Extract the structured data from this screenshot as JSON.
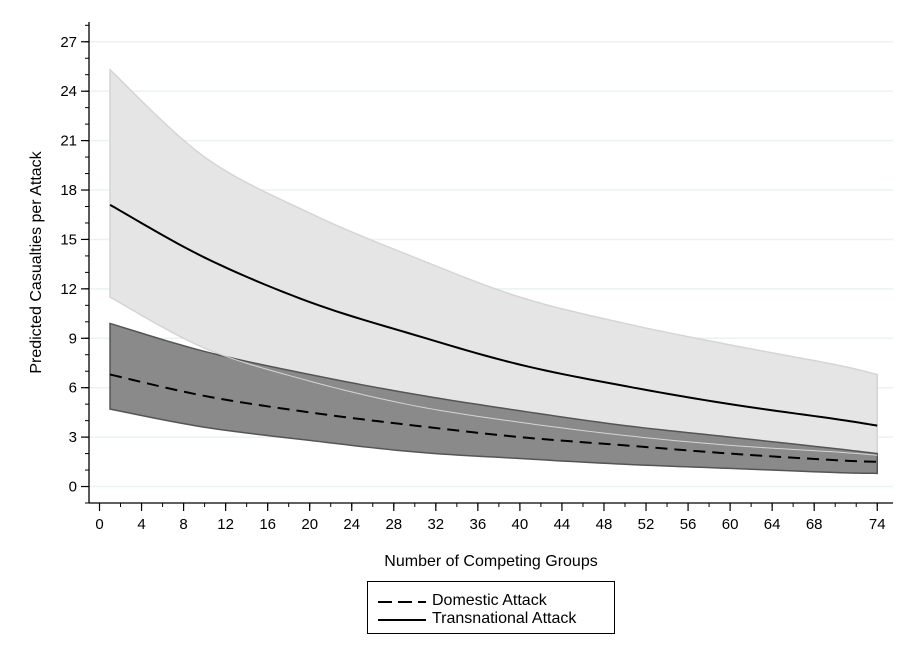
{
  "chart_data": {
    "type": "line",
    "xlabel": "Number of Competing Groups",
    "ylabel": "Predicted Casualties per Attack",
    "xlim": [
      -1,
      75.5
    ],
    "ylim": [
      -1,
      28.2
    ],
    "x_ticks": [
      0,
      4,
      8,
      12,
      16,
      20,
      24,
      28,
      32,
      36,
      40,
      44,
      48,
      52,
      56,
      60,
      64,
      68,
      74
    ],
    "y_ticks": [
      0,
      3,
      6,
      9,
      12,
      15,
      18,
      21,
      24,
      27
    ],
    "y_minor_step": 1,
    "grid": "horizontal",
    "legend_position": "bottom",
    "series": [
      {
        "name": "Transnational Attack",
        "line_style": "solid",
        "x": [
          1,
          10,
          20,
          30,
          40,
          50,
          60,
          70,
          74
        ],
        "values": [
          17.1,
          13.9,
          11.2,
          9.2,
          7.4,
          6.1,
          5.0,
          4.1,
          3.7
        ],
        "ci_lower": [
          11.5,
          8.4,
          6.4,
          4.9,
          3.9,
          3.1,
          2.5,
          2.1,
          1.9
        ],
        "ci_upper": [
          25.3,
          20.0,
          16.6,
          13.9,
          11.5,
          9.9,
          8.6,
          7.4,
          6.8
        ],
        "band_color": "#e5e5e5",
        "band_edge_color": "#d5d5d5"
      },
      {
        "name": "Domestic Attack",
        "line_style": "dashed",
        "x": [
          1,
          10,
          20,
          30,
          40,
          50,
          60,
          70,
          74
        ],
        "values": [
          6.8,
          5.5,
          4.5,
          3.7,
          3.0,
          2.5,
          2.0,
          1.6,
          1.5
        ],
        "ci_lower": [
          4.7,
          3.6,
          2.8,
          2.1,
          1.7,
          1.35,
          1.1,
          0.85,
          0.8
        ],
        "ci_upper": [
          9.9,
          8.2,
          6.8,
          5.6,
          4.6,
          3.7,
          3.0,
          2.3,
          2.0
        ],
        "band_color": "#8a8a8a",
        "band_edge_color": "#555555"
      }
    ],
    "legend": [
      {
        "label": "Domestic Attack",
        "line_style": "dashed"
      },
      {
        "label": "Transnational Attack",
        "line_style": "solid"
      }
    ]
  }
}
